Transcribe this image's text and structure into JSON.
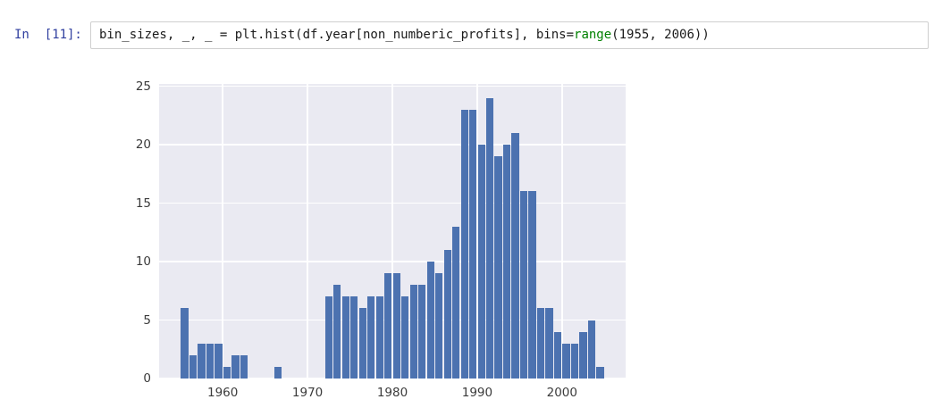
{
  "cell": {
    "prompt_label": "In  [11]:",
    "code": {
      "pre": "bin_sizes, _, _ = plt.hist(df.year[non_numberic_profits], bins=",
      "func": "range",
      "post": "(1955, 2006))"
    }
  },
  "colors": {
    "prompt": "#303F9F",
    "code_default": "#1a1a1a",
    "code_func": "#008000",
    "bar": "#4C72B0",
    "plot_bg": "#EAEAF2",
    "grid": "#FFFFFF",
    "tick_label": "#3b3b3b",
    "cell_border": "#cfcfcf"
  },
  "chart_data": {
    "type": "bar",
    "title": "",
    "xlabel": "",
    "ylabel": "",
    "legend": false,
    "grid": true,
    "bin_width": 1,
    "xlim": [
      1952.5,
      2007.5
    ],
    "ylim": [
      0,
      25.2
    ],
    "xticks": [
      1960,
      1970,
      1980,
      1990,
      2000
    ],
    "yticks": [
      0,
      5,
      10,
      15,
      20,
      25
    ],
    "years": [
      1955,
      1956,
      1957,
      1958,
      1959,
      1960,
      1961,
      1962,
      1963,
      1964,
      1965,
      1966,
      1967,
      1968,
      1969,
      1970,
      1971,
      1972,
      1973,
      1974,
      1975,
      1976,
      1977,
      1978,
      1979,
      1980,
      1981,
      1982,
      1983,
      1984,
      1985,
      1986,
      1987,
      1988,
      1989,
      1990,
      1991,
      1992,
      1993,
      1994,
      1995,
      1996,
      1997,
      1998,
      1999,
      2000,
      2001,
      2002,
      2003,
      2004
    ],
    "values": [
      6,
      2,
      3,
      3,
      3,
      1,
      2,
      2,
      0,
      0,
      0,
      1,
      0,
      0,
      0,
      0,
      0,
      7,
      8,
      7,
      7,
      6,
      7,
      7,
      9,
      9,
      7,
      8,
      8,
      10,
      9,
      11,
      13,
      23,
      23,
      20,
      24,
      19,
      20,
      21,
      16,
      16,
      6,
      6,
      4,
      3,
      3,
      4,
      5,
      1
    ]
  }
}
